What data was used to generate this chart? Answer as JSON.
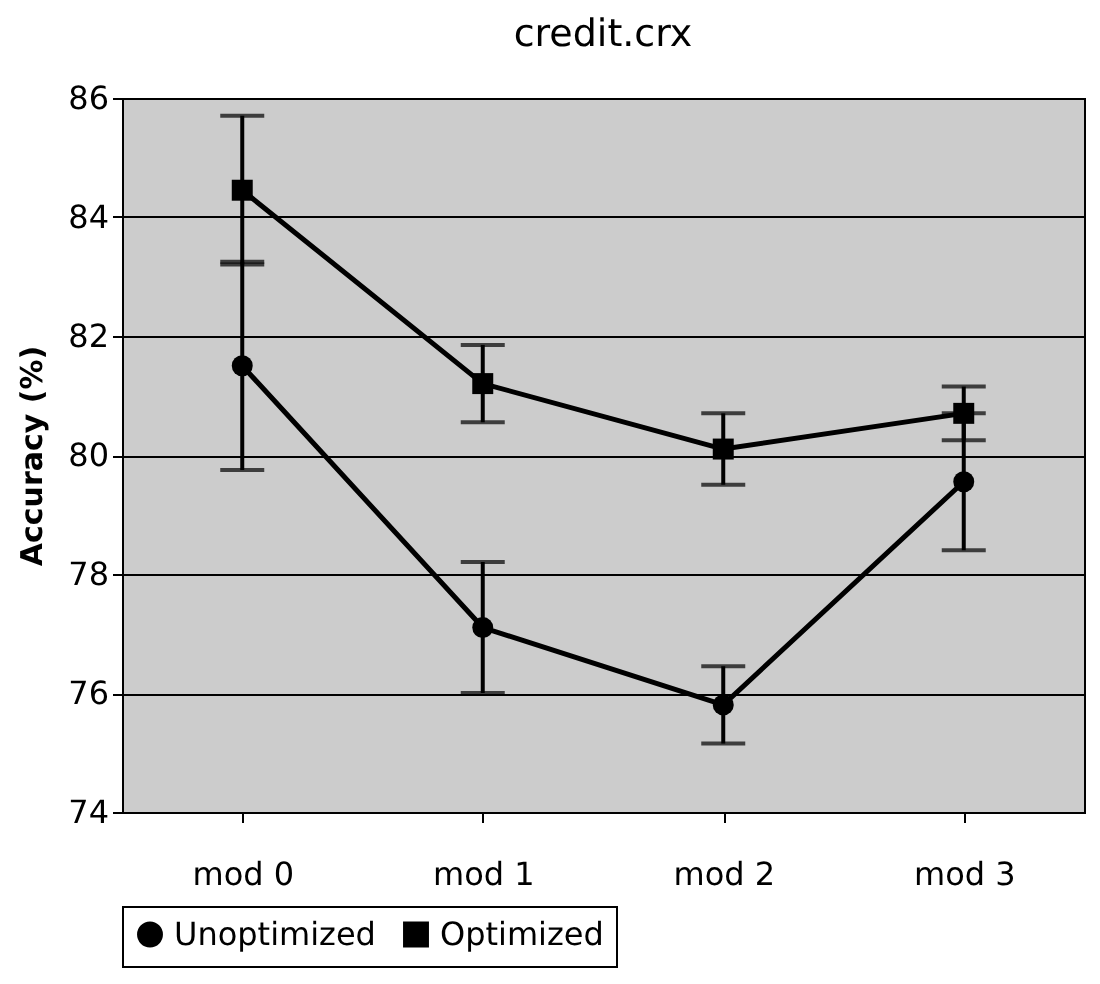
{
  "chart_data": {
    "type": "line",
    "title": "credit.crx",
    "ylabel": "Accuracy  (%)",
    "categories": [
      "mod 0",
      "mod 1",
      "mod 2",
      "mod 3"
    ],
    "series": [
      {
        "name": "Unoptimized",
        "color": "#000000",
        "marker": "circle",
        "values": [
          81.5,
          77.1,
          75.8,
          79.55
        ],
        "errors": [
          1.75,
          1.1,
          0.65,
          1.15
        ]
      },
      {
        "name": "Optimized",
        "color": "#000000",
        "marker": "square",
        "values": [
          84.45,
          81.2,
          80.1,
          80.7
        ],
        "errors": [
          1.25,
          0.65,
          0.6,
          0.45
        ]
      }
    ],
    "ylim": [
      74,
      86
    ],
    "yticks": [
      74,
      76,
      78,
      80,
      82,
      84,
      86
    ],
    "grid": "y",
    "legend": "bottom",
    "line_style": "solid"
  }
}
